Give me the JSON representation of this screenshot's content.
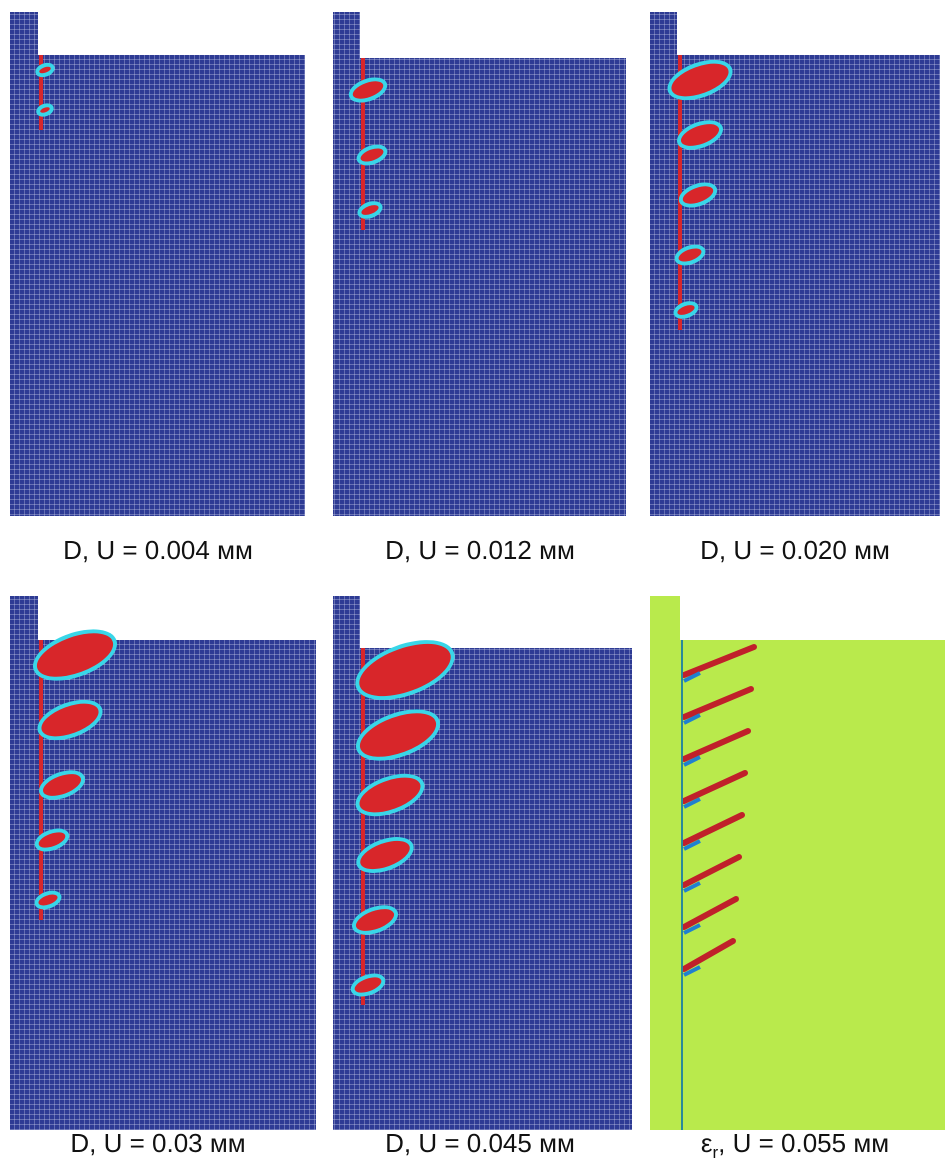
{
  "panels": [
    {
      "caption": "D, U = 0.004 мм"
    },
    {
      "caption": "D, U = 0.012 мм"
    },
    {
      "caption": "D, U = 0.020 мм"
    },
    {
      "caption": "D, U = 0.03 мм"
    },
    {
      "caption": "D, U = 0.045 мм"
    },
    {
      "caption_symbol": "ε",
      "caption_subscript": "r",
      "caption_rest": ", U = 0.055 мм"
    }
  ]
}
